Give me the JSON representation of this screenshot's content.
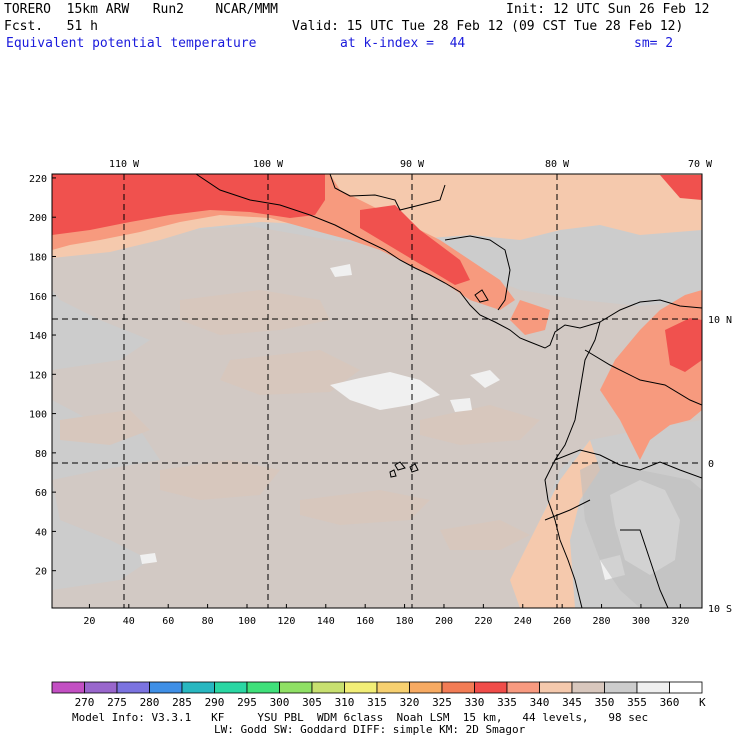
{
  "header": {
    "model": "TORERO  15km ARW   Run2    NCAR/MMM",
    "init": "Init: 12 UTC Sun 26 Feb 12",
    "fcst": "Fcst.   51 h",
    "valid": "Valid: 15 UTC Tue 28 Feb 12 (09 CST Tue 28 Feb 12)",
    "field": "Equivalent potential temperature",
    "level": "at k-index =  44",
    "smooth": "sm= 2"
  },
  "map": {
    "lon_labels": [
      "110 W",
      "100 W",
      "90 W",
      "80 W",
      "70 W"
    ],
    "lat_labels": [
      "10 N",
      "0",
      "10 S"
    ],
    "x_ticks": [
      "20",
      "40",
      "60",
      "80",
      "100",
      "120",
      "140",
      "160",
      "180",
      "200",
      "220",
      "240",
      "260",
      "280",
      "300",
      "320"
    ],
    "y_ticks": [
      "20",
      "40",
      "60",
      "80",
      "100",
      "120",
      "140",
      "160",
      "180",
      "200",
      "220"
    ],
    "colors": {
      "land_border": "#000000",
      "grid_dash": "#000000",
      "c335": "#f0514e",
      "c340": "#f79a7e",
      "c345": "#f5c9ad",
      "c350": "#d7c7bd",
      "c355": "#cccccc",
      "c360": "#f0f0f0"
    }
  },
  "legend": {
    "unit": "K",
    "values": [
      "270",
      "275",
      "280",
      "285",
      "290",
      "295",
      "300",
      "305",
      "310",
      "315",
      "320",
      "325",
      "330",
      "335",
      "340",
      "345",
      "350",
      "355",
      "360"
    ],
    "colors": [
      "#c34fc3",
      "#9966cc",
      "#7b73e0",
      "#3f8fe6",
      "#28b7c0",
      "#2ad7a3",
      "#3fe07a",
      "#8fe065",
      "#c8e070",
      "#f2ee77",
      "#f7d070",
      "#f7aa62",
      "#f27c55",
      "#f04c49",
      "#f89a80",
      "#f5c9ad",
      "#d8c7bd",
      "#cccccc",
      "#efefef",
      "#ffffff"
    ]
  },
  "footer": {
    "line1": "Model Info: V3.3.1   KF     YSU PBL  WDM 6class  Noah LSM  15 km,   44 levels,   98 sec",
    "line2": "LW: Godd SW: Goddard DIFF: simple KM: 2D Smagor"
  }
}
